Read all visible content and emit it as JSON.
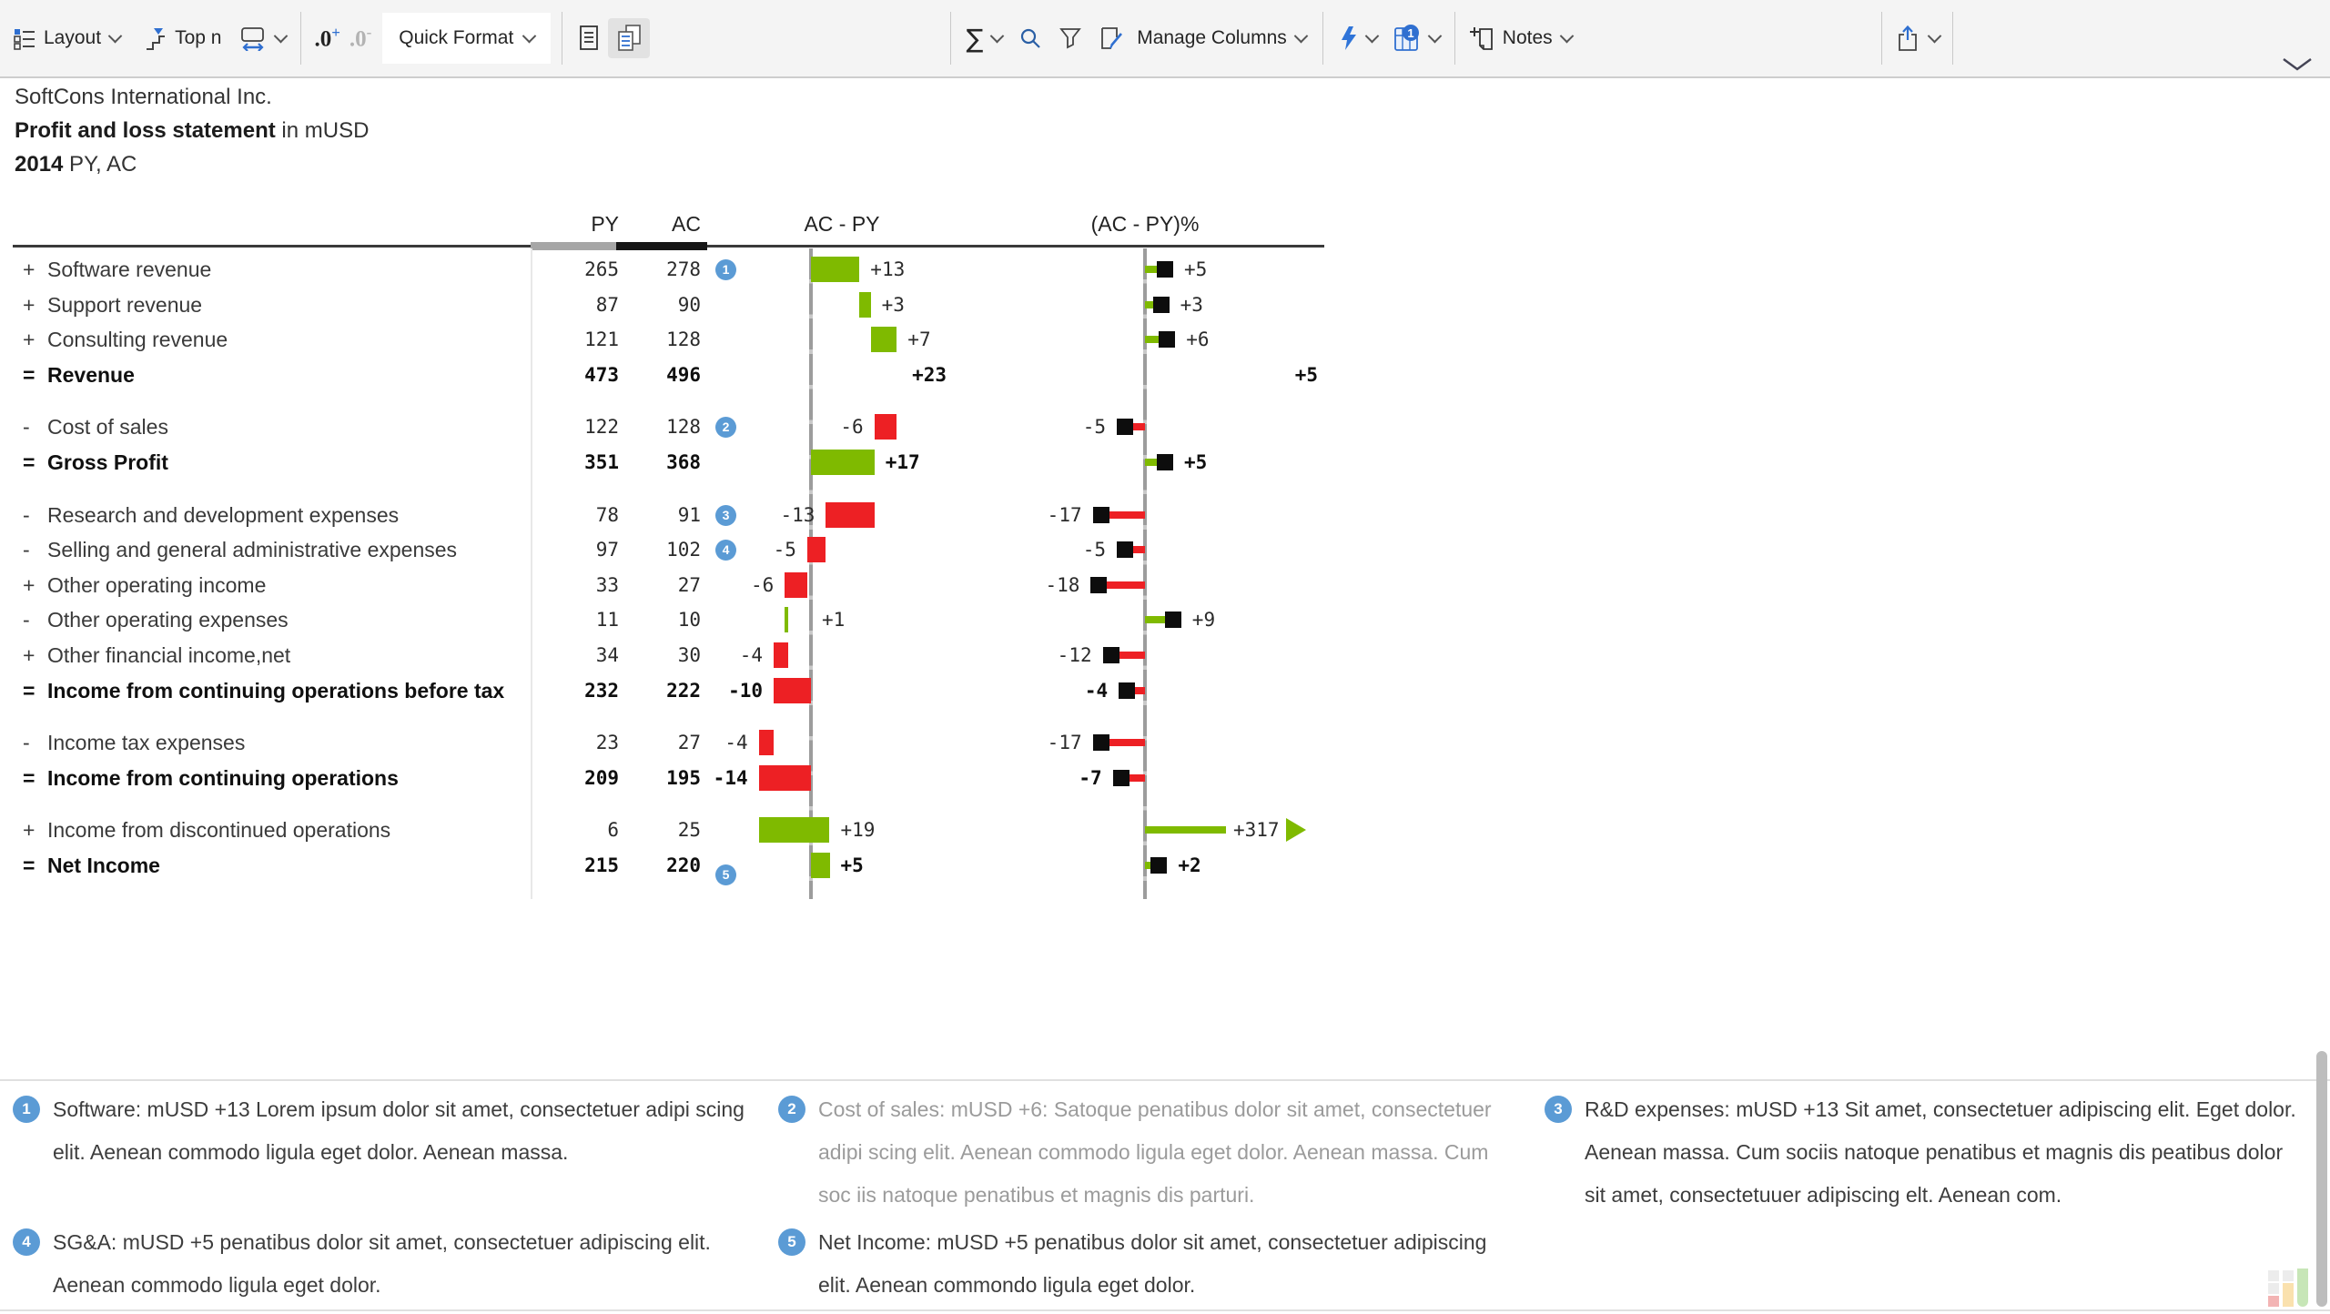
{
  "toolbar": {
    "layout_label": "Layout",
    "topn_label": "Top n",
    "dec_inc": ".0",
    "dec_inc_sign": "+",
    "dec_dec": ".0",
    "dec_dec_sign": "-",
    "quick_format_label": "Quick Format",
    "manage_columns_label": "Manage Columns",
    "notes_label": "Notes",
    "table_badge": "1"
  },
  "title": {
    "company": "SoftCons International Inc.",
    "subtitle_bold": "Profit and loss statement",
    "subtitle_rest": " in mUSD",
    "year_bold": "2014",
    "year_rest": " PY, AC"
  },
  "columns": {
    "py": "PY",
    "ac": "AC",
    "abs": "AC - PY",
    "pct": "(AC - PY)%"
  },
  "colors": {
    "positive": "#7fba00",
    "negative": "#ed2024",
    "pin_black": "#0d0d0d",
    "axis_gray": "#9c9c9c",
    "badge_blue": "#5b9bd5",
    "py_band": "#a6a6a6",
    "ac_band": "#161616"
  },
  "rows": [
    {
      "sign": "+",
      "label": "Software revenue",
      "py": "265",
      "ac": "278",
      "badge": "1",
      "abs": {
        "val": "+13",
        "from": 0,
        "to": 13,
        "color": "green"
      },
      "pct": {
        "val": "+5",
        "pos": 5,
        "color": "green"
      }
    },
    {
      "sign": "+",
      "label": "Support revenue",
      "py": "87",
      "ac": "90",
      "abs": {
        "val": "+3",
        "from": 13,
        "to": 16,
        "color": "green"
      },
      "pct": {
        "val": "+3",
        "pos": 3,
        "color": "green"
      }
    },
    {
      "sign": "+",
      "label": "Consulting revenue",
      "py": "121",
      "ac": "128",
      "abs": {
        "val": "+7",
        "from": 16,
        "to": 23,
        "color": "green"
      },
      "pct": {
        "val": "+6",
        "pos": 6,
        "color": "green"
      }
    },
    {
      "sign": "=",
      "label": "Revenue",
      "py": "473",
      "ac": "496",
      "bold": true,
      "abs": {
        "val": "+23",
        "text_only": true
      },
      "pct": {
        "val": "+5",
        "text_only": true
      }
    },
    {
      "sign": "-",
      "label": "Cost of sales",
      "py": "122",
      "ac": "128",
      "badge": "2",
      "gap": true,
      "abs": {
        "val": "-6",
        "from": 17,
        "to": 23,
        "color": "red"
      },
      "pct": {
        "val": "-5",
        "pos": -5,
        "color": "red"
      }
    },
    {
      "sign": "=",
      "label": "Gross Profit",
      "py": "351",
      "ac": "368",
      "bold": true,
      "abs": {
        "val": "+17",
        "from": 0,
        "to": 17,
        "color": "green"
      },
      "pct": {
        "val": "+5",
        "pos": 5,
        "color": "green"
      }
    },
    {
      "sign": "-",
      "label": "Research and development expenses",
      "py": "78",
      "ac": "91",
      "badge": "3",
      "gap": true,
      "abs": {
        "val": "-13",
        "from": 4,
        "to": 17,
        "color": "red"
      },
      "pct": {
        "val": "-17",
        "pos": -17,
        "color": "red"
      }
    },
    {
      "sign": "-",
      "label": "Selling and general administrative expenses",
      "py": "97",
      "ac": "102",
      "badge": "4",
      "abs": {
        "val": "-5",
        "from": -1,
        "to": 4,
        "color": "red"
      },
      "pct": {
        "val": "-5",
        "pos": -5,
        "color": "red"
      }
    },
    {
      "sign": "+",
      "label": "Other operating income",
      "py": "33",
      "ac": "27",
      "abs": {
        "val": "-6",
        "from": -7,
        "to": -1,
        "color": "red"
      },
      "pct": {
        "val": "-18",
        "pos": -18,
        "color": "red"
      }
    },
    {
      "sign": "-",
      "label": "Other operating expenses",
      "py": "11",
      "ac": "10",
      "abs": {
        "val": "+1",
        "from": -7,
        "to": -6,
        "color": "green"
      },
      "pct": {
        "val": "+9",
        "pos": 9,
        "color": "green"
      }
    },
    {
      "sign": "+",
      "label": "Other financial income,net",
      "py": "34",
      "ac": "30",
      "abs": {
        "val": "-4",
        "from": -10,
        "to": -6,
        "color": "red"
      },
      "pct": {
        "val": "-12",
        "pos": -12,
        "color": "red"
      }
    },
    {
      "sign": "=",
      "label": "Income from continuing operations before tax",
      "py": "232",
      "ac": "222",
      "bold": true,
      "abs": {
        "val": "-10",
        "from": -10,
        "to": 0,
        "color": "red"
      },
      "pct": {
        "val": "-4",
        "pos": -4,
        "color": "red"
      }
    },
    {
      "sign": "-",
      "label": "Income tax expenses",
      "py": "23",
      "ac": "27",
      "gap": true,
      "abs": {
        "val": "-4",
        "from": -14,
        "to": -10,
        "color": "red"
      },
      "pct": {
        "val": "-17",
        "pos": -17,
        "color": "red"
      }
    },
    {
      "sign": "=",
      "label": "Income from continuing operations",
      "py": "209",
      "ac": "195",
      "bold": true,
      "abs": {
        "val": "-14",
        "from": -14,
        "to": 0,
        "color": "red"
      },
      "pct": {
        "val": "-7",
        "pos": -7,
        "color": "red"
      }
    },
    {
      "sign": "+",
      "label": "Income from discontinued operations",
      "py": "6",
      "ac": "25",
      "gap": true,
      "abs": {
        "val": "+19",
        "from": -14,
        "to": 5,
        "color": "green"
      },
      "pct": {
        "val": "+317",
        "outlier": true,
        "color": "green"
      }
    },
    {
      "sign": "=",
      "label": "Net Income",
      "py": "215",
      "ac": "220",
      "badge": "5",
      "bold": true,
      "abs": {
        "val": "+5",
        "from": 0,
        "to": 5,
        "color": "green"
      },
      "pct": {
        "val": "+2",
        "pos": 2,
        "color": "green"
      }
    }
  ],
  "footnotes": [
    {
      "num": "1",
      "text": "Software: mUSD +13 Lorem ipsum dolor sit amet, consectetuer adipi scing elit. Aenean commodo ligula eget dolor. Aenean massa.",
      "muted": false
    },
    {
      "num": "2",
      "text": "Cost of sales: mUSD +6: Satoque penatibus dolor sit amet, consectetuer adipi scing elit. Aenean commodo ligula eget dolor. Aenean massa. Cum soc iis natoque penatibus et magnis dis parturi.",
      "muted": true
    },
    {
      "num": "3",
      "text": "R&D expenses: mUSD +13 Sit amet, consectetuer adipiscing elit. Eget dolor. Aenean massa. Cum sociis natoque penatibus et magnis dis peatibus dolor sit amet, consectetuuer adipiscing elt. Aenean com.",
      "muted": false
    },
    {
      "num": "4",
      "text": "SG&A: mUSD +5 penatibus dolor sit amet, consectetuer adipiscing elit. Aenean commodo ligula eget dolor.",
      "muted": false
    },
    {
      "num": "5",
      "text": "Net Income: mUSD +5 penatibus dolor sit amet, consectetuer adipiscing elit. Aenean commondo ligula eget dolor.",
      "muted": false
    }
  ]
}
